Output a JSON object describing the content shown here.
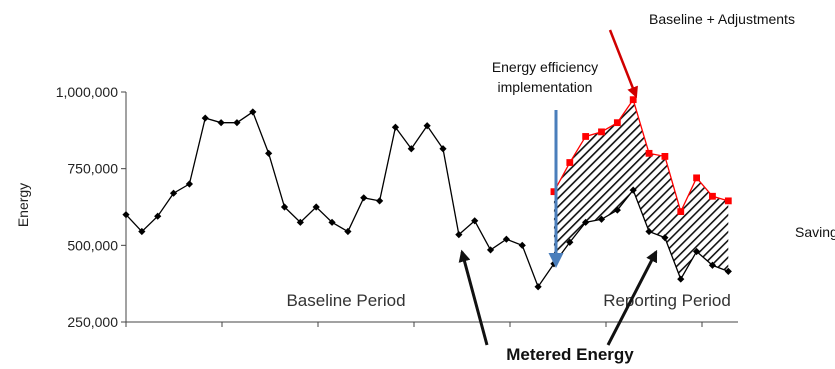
{
  "chart_data": {
    "type": "line",
    "ylabel": "Energy",
    "ylim": [
      250000,
      1000000
    ],
    "yticks": [
      {
        "value": 250000,
        "label": "250,000"
      },
      {
        "value": 500000,
        "label": "500,000"
      },
      {
        "value": 750000,
        "label": "750,000"
      },
      {
        "value": 1000000,
        "label": "1,000,000"
      }
    ],
    "periods": {
      "baseline": "Baseline Period",
      "reporting": "Reporting Period"
    },
    "annotations": {
      "implementation": [
        "Energy efficiency",
        "implementation"
      ],
      "baseline_adjustments": "Baseline + Adjustments",
      "savings": "Savings",
      "metered_energy": "Metered Energy"
    },
    "colors": {
      "metered": "#000000",
      "adjusted": "#ff0000",
      "implementation_arrow": "#4a7ebb",
      "annotation_arrow": "#d00000"
    },
    "series": [
      {
        "values": [
          600000,
          545000,
          595000,
          670000,
          700000,
          915000,
          900000,
          900000,
          935000,
          800000,
          625000,
          575000,
          625000,
          575000,
          545000,
          655000,
          645000,
          885000,
          815000,
          890000,
          815000,
          535000,
          580000,
          485000,
          520000,
          500000,
          365000,
          440000,
          510000,
          575000,
          585000,
          615000,
          680000,
          545000,
          525000,
          390000,
          480000,
          435000,
          415000
        ]
      },
      {
        "start_index": 27,
        "values": [
          675000,
          770000,
          855000,
          870000,
          900000,
          975000,
          800000,
          790000,
          610000,
          720000,
          660000,
          645000
        ]
      }
    ]
  }
}
